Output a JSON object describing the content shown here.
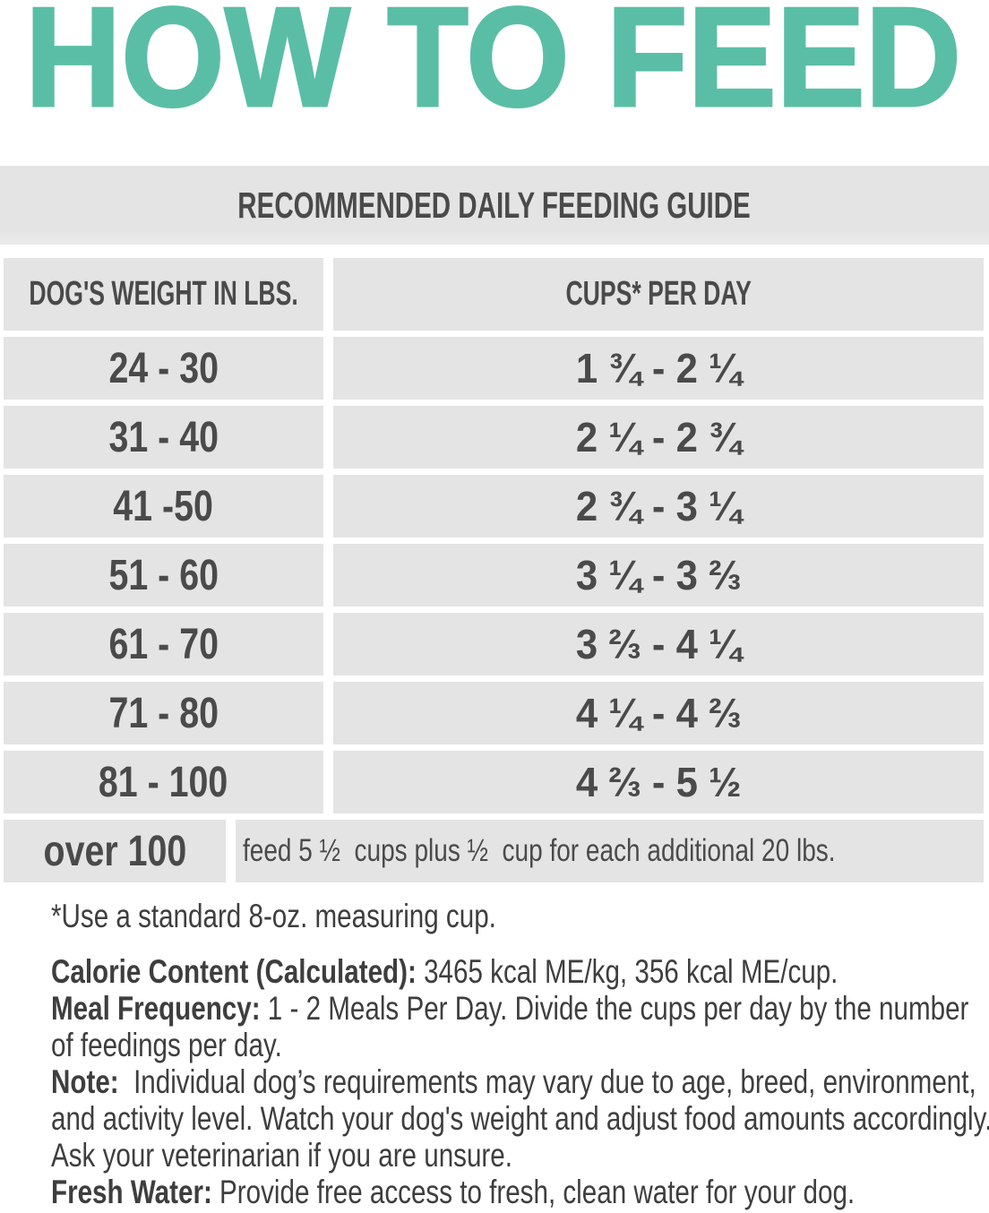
{
  "page": {
    "title": "HOW TO FEED",
    "accent_color": "#5abea6",
    "bar_color": "#e4e4e4",
    "table_text_color": "#4a4a4a",
    "note_text_color": "#3e3e3e"
  },
  "table": {
    "header": "RECOMMENDED DAILY FEEDING GUIDE",
    "columns": {
      "weight": "DOG'S WEIGHT IN LBS.",
      "cups": "CUPS* PER DAY"
    },
    "rows": [
      {
        "weight": "24 - 30",
        "cups": "1 ¾ - 2 ¼"
      },
      {
        "weight": "31 - 40",
        "cups": "2 ¼ - 2 ¾"
      },
      {
        "weight": "41 -50",
        "cups": "2 ¾ - 3 ¼"
      },
      {
        "weight": "51 - 60",
        "cups": "3 ¼ - 3 ⅔"
      },
      {
        "weight": "61 - 70",
        "cups": "3 ⅔ - 4 ¼"
      },
      {
        "weight": "71 - 80",
        "cups": "4 ¼ - 4 ⅔"
      },
      {
        "weight": "81 - 100",
        "cups": "4 ⅔ - 5 ½"
      },
      {
        "weight": "over 100",
        "cups": "feed 5 ½  cups plus ½  cup for each additional 20 lbs."
      }
    ]
  },
  "notes": {
    "footnote": "*Use a standard 8-oz. measuring cup.",
    "lines": [
      {
        "bold": "Calorie Content (Calculated):",
        "text": " 3465 kcal ME/kg, 356 kcal ME/cup."
      },
      {
        "bold": "Meal Frequency:",
        "text": " 1 - 2 Meals Per Day. Divide the cups per day by the number"
      },
      {
        "bold": "",
        "text": "of feedings per day."
      },
      {
        "bold": "Note:",
        "text": "  Individual dog’s requirements may vary due to age, breed, environment,"
      },
      {
        "bold": "",
        "text": "and activity level. Watch your dog's weight and adjust food amounts accordingly."
      },
      {
        "bold": "",
        "text": "Ask your veterinarian if you are unsure."
      },
      {
        "bold": "Fresh Water:",
        "text": " Provide free access to fresh, clean water for your dog."
      }
    ]
  }
}
